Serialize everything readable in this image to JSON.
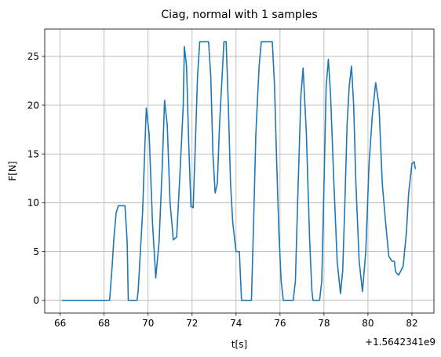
{
  "chart_data": {
    "type": "line",
    "title": "Ciag, normal with 1 samples",
    "xlabel": "t[s]",
    "ylabel": "F[N]",
    "x_offset_label": "+1.5642341e9",
    "xlim": [
      65.3,
      83.0
    ],
    "ylim": [
      -1.3,
      27.8
    ],
    "xticks": [
      66,
      68,
      70,
      72,
      74,
      76,
      78,
      80,
      82
    ],
    "xtick_labels": [
      "66",
      "68",
      "70",
      "72",
      "74",
      "76",
      "78",
      "80",
      "82"
    ],
    "yticks": [
      0,
      5,
      10,
      15,
      20,
      25
    ],
    "ytick_labels": [
      "0",
      "5",
      "10",
      "15",
      "20",
      "25"
    ],
    "grid": true,
    "series": [
      {
        "color": "#1f77b4",
        "x": [
          66.1,
          68.25,
          68.35,
          68.45,
          68.55,
          68.65,
          68.95,
          69.05,
          69.1,
          69.5,
          69.55,
          69.75,
          69.85,
          69.92,
          70.05,
          70.2,
          70.35,
          70.5,
          70.65,
          70.75,
          70.87,
          71.0,
          71.15,
          71.3,
          71.45,
          71.6,
          71.65,
          71.75,
          71.85,
          71.95,
          72.05,
          72.15,
          72.25,
          72.35,
          72.45,
          72.75,
          72.85,
          72.95,
          73.05,
          73.15,
          73.25,
          73.45,
          73.55,
          73.65,
          73.75,
          73.85,
          74.0,
          74.1,
          74.15,
          74.25,
          74.7,
          74.8,
          74.9,
          75.05,
          75.15,
          75.2,
          75.65,
          75.75,
          75.85,
          75.95,
          76.05,
          76.15,
          76.2,
          76.6,
          76.7,
          76.8,
          76.95,
          77.05,
          77.2,
          77.35,
          77.45,
          77.5,
          77.8,
          77.9,
          78.0,
          78.1,
          78.2,
          78.3,
          78.45,
          78.6,
          78.75,
          78.85,
          78.95,
          79.05,
          79.15,
          79.25,
          79.35,
          79.45,
          79.6,
          79.75,
          79.9,
          80.05,
          80.2,
          80.35,
          80.5,
          80.65,
          80.8,
          80.95,
          81.1,
          81.2,
          81.25,
          81.3,
          81.4,
          81.6,
          81.75,
          81.85,
          82.0,
          82.1,
          82.15
        ],
        "y": [
          0,
          0,
          3,
          6.5,
          9,
          9.7,
          9.7,
          6,
          0,
          0,
          1,
          9,
          15.5,
          19.7,
          17,
          8,
          2.3,
          6,
          14,
          20.5,
          18,
          10,
          6.2,
          6.5,
          13,
          20,
          26,
          24,
          16,
          9.6,
          9.5,
          16,
          23,
          26.5,
          26.5,
          26.5,
          23,
          15,
          11,
          12,
          18,
          26.5,
          26.5,
          20,
          12,
          8,
          5,
          5,
          5,
          0,
          0,
          8,
          17,
          24,
          26.5,
          26.5,
          26.5,
          22,
          14,
          7,
          2,
          0,
          0,
          0,
          2,
          10,
          21,
          23.8,
          17,
          6,
          1,
          0,
          0,
          2,
          12,
          22,
          24.7,
          21,
          12,
          4,
          0.7,
          3,
          10,
          18,
          22,
          24,
          20,
          12,
          4,
          0.9,
          5,
          14,
          19,
          22.3,
          20,
          12,
          8,
          4.5,
          4,
          4,
          3,
          2.8,
          2.6,
          3.5,
          7,
          11,
          14,
          14.2,
          13.5
        ]
      }
    ]
  }
}
